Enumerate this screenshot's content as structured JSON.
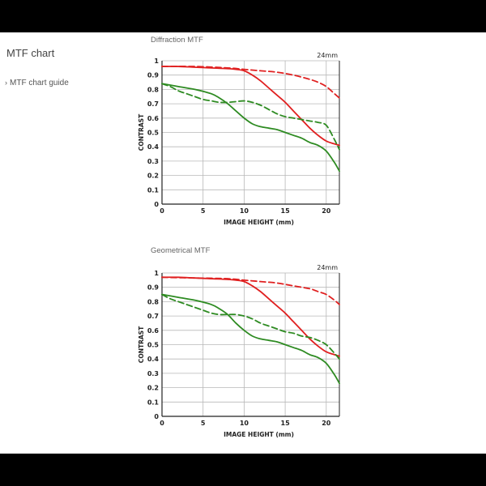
{
  "sidebar": {
    "title": "MTF chart",
    "link_chevron": "›",
    "link_label": "MTF chart guide"
  },
  "colors": {
    "sagittal_red": "#e02020",
    "meridional_green": "#2e8b22",
    "grid": "#b8b8b8"
  },
  "chart_data": [
    {
      "type": "line",
      "title": "Diffraction MTF",
      "focal_length": "24mm",
      "xlabel": "IMAGE HEIGHT (mm)",
      "ylabel": "CONTRAST",
      "xlim": [
        0,
        21.6
      ],
      "ylim": [
        0,
        1
      ],
      "xticks": [
        0,
        5,
        10,
        15,
        20
      ],
      "yticks": [
        0,
        0.1,
        0.2,
        0.3,
        0.4,
        0.5,
        0.6,
        0.7,
        0.8,
        0.9,
        1
      ],
      "ytick_labels": [
        "0",
        "0.1",
        "0.2",
        "0.3",
        "0.4",
        "0.5",
        "0.6",
        "0.7",
        "0.8",
        "0.9",
        "1"
      ],
      "grid": true,
      "series": [
        {
          "color": "red",
          "style": "solid",
          "x": [
            0,
            2,
            4,
            6,
            8,
            9,
            10,
            11,
            12,
            13,
            14,
            15,
            16,
            17,
            18,
            19,
            20,
            21,
            21.6
          ],
          "y": [
            0.96,
            0.96,
            0.955,
            0.95,
            0.945,
            0.94,
            0.93,
            0.9,
            0.86,
            0.81,
            0.76,
            0.71,
            0.65,
            0.59,
            0.53,
            0.48,
            0.44,
            0.42,
            0.41
          ]
        },
        {
          "color": "red",
          "style": "dashed",
          "x": [
            0,
            4,
            8,
            10,
            12,
            14,
            16,
            18,
            19,
            20,
            21,
            21.6
          ],
          "y": [
            0.96,
            0.96,
            0.95,
            0.94,
            0.93,
            0.92,
            0.9,
            0.87,
            0.85,
            0.82,
            0.77,
            0.74
          ]
        },
        {
          "color": "green",
          "style": "solid",
          "x": [
            0,
            2,
            4,
            6,
            7,
            8,
            9,
            10,
            11,
            12,
            13,
            14,
            15,
            16,
            17,
            18,
            19,
            20,
            21,
            21.6
          ],
          "y": [
            0.84,
            0.82,
            0.8,
            0.77,
            0.74,
            0.7,
            0.65,
            0.6,
            0.56,
            0.54,
            0.53,
            0.52,
            0.5,
            0.48,
            0.46,
            0.43,
            0.41,
            0.37,
            0.29,
            0.23
          ]
        },
        {
          "color": "green",
          "style": "dashed",
          "x": [
            0,
            1,
            2,
            3,
            4,
            5,
            6,
            7,
            8,
            9,
            10,
            11,
            12,
            13,
            14,
            15,
            16,
            17,
            18,
            19,
            20,
            21,
            21.6
          ],
          "y": [
            0.84,
            0.82,
            0.79,
            0.77,
            0.75,
            0.73,
            0.72,
            0.71,
            0.71,
            0.715,
            0.72,
            0.71,
            0.69,
            0.66,
            0.63,
            0.61,
            0.6,
            0.59,
            0.58,
            0.57,
            0.55,
            0.45,
            0.38
          ]
        }
      ]
    },
    {
      "type": "line",
      "title": "Geometrical MTF",
      "focal_length": "24mm",
      "xlabel": "IMAGE HEIGHT (mm)",
      "ylabel": "CONTRAST",
      "xlim": [
        0,
        21.6
      ],
      "ylim": [
        0,
        1
      ],
      "xticks": [
        0,
        5,
        10,
        15,
        20
      ],
      "yticks": [
        0,
        0.1,
        0.2,
        0.3,
        0.4,
        0.5,
        0.6,
        0.7,
        0.8,
        0.9,
        1
      ],
      "ytick_labels": [
        "0",
        "0.1",
        "0.2",
        "0.3",
        "0.4",
        "0.5",
        "0.6",
        "0.7",
        "0.8",
        "0.9",
        "1"
      ],
      "grid": true,
      "series": [
        {
          "color": "red",
          "style": "solid",
          "x": [
            0,
            2,
            4,
            6,
            8,
            9,
            10,
            11,
            12,
            13,
            14,
            15,
            16,
            17,
            18,
            19,
            20,
            21,
            21.6
          ],
          "y": [
            0.97,
            0.97,
            0.965,
            0.96,
            0.955,
            0.95,
            0.94,
            0.91,
            0.87,
            0.82,
            0.77,
            0.72,
            0.66,
            0.6,
            0.54,
            0.49,
            0.45,
            0.43,
            0.42
          ]
        },
        {
          "color": "red",
          "style": "dashed",
          "x": [
            0,
            4,
            8,
            10,
            12,
            14,
            16,
            18,
            19,
            20,
            21,
            21.6
          ],
          "y": [
            0.97,
            0.965,
            0.96,
            0.95,
            0.94,
            0.93,
            0.91,
            0.89,
            0.87,
            0.85,
            0.81,
            0.78
          ]
        },
        {
          "color": "green",
          "style": "solid",
          "x": [
            0,
            2,
            4,
            6,
            7,
            8,
            9,
            10,
            11,
            12,
            13,
            14,
            15,
            16,
            17,
            18,
            19,
            20,
            21,
            21.6
          ],
          "y": [
            0.85,
            0.83,
            0.81,
            0.78,
            0.75,
            0.71,
            0.65,
            0.6,
            0.56,
            0.54,
            0.53,
            0.52,
            0.5,
            0.48,
            0.46,
            0.43,
            0.41,
            0.37,
            0.29,
            0.23
          ]
        },
        {
          "color": "green",
          "style": "dashed",
          "x": [
            0,
            1,
            2,
            3,
            4,
            5,
            6,
            7,
            8,
            9,
            10,
            11,
            12,
            13,
            14,
            15,
            16,
            17,
            18,
            19,
            20,
            21,
            21.6
          ],
          "y": [
            0.85,
            0.82,
            0.8,
            0.78,
            0.76,
            0.74,
            0.72,
            0.71,
            0.71,
            0.71,
            0.7,
            0.68,
            0.65,
            0.63,
            0.61,
            0.59,
            0.58,
            0.56,
            0.55,
            0.53,
            0.5,
            0.44,
            0.4
          ]
        }
      ]
    }
  ]
}
